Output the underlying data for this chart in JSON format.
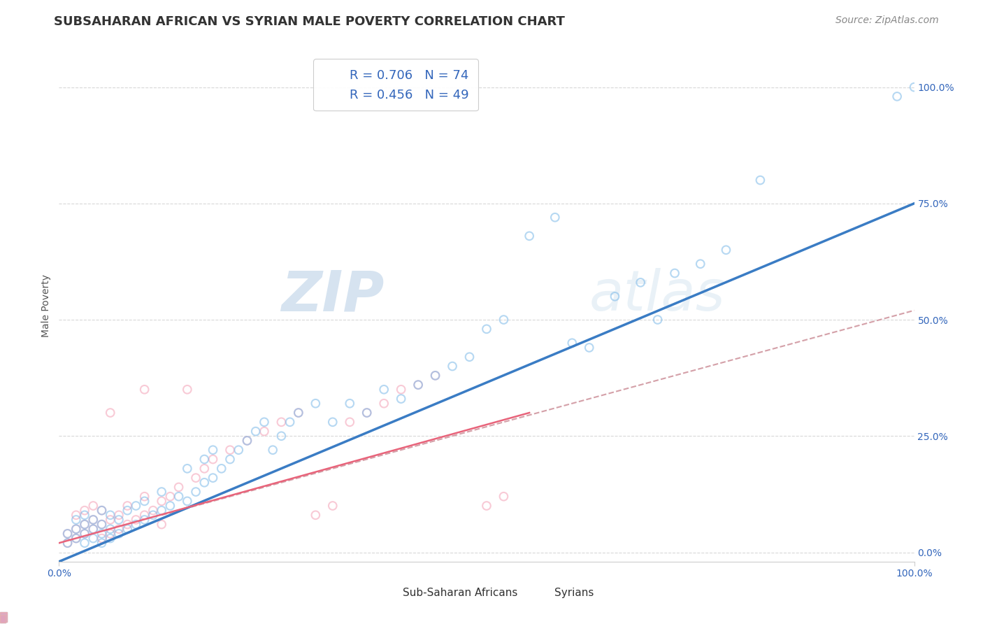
{
  "title": "SUBSAHARAN AFRICAN VS SYRIAN MALE POVERTY CORRELATION CHART",
  "source_text": "Source: ZipAtlas.com",
  "ylabel": "Male Poverty",
  "xlim": [
    0.0,
    1.0
  ],
  "ylim": [
    -0.02,
    1.08
  ],
  "xtick_labels": [
    "0.0%",
    "100.0%"
  ],
  "ytick_labels": [
    "0.0%",
    "25.0%",
    "50.0%",
    "75.0%",
    "100.0%"
  ],
  "ytick_positions": [
    0.0,
    0.25,
    0.5,
    0.75,
    1.0
  ],
  "blue_color": "#7ab8e8",
  "pink_color": "#f4a0b5",
  "blue_line_color": "#3a7cc4",
  "pink_line_color": "#e8637a",
  "dashed_line_color": "#d4a0a8",
  "watermark_zip": "ZIP",
  "watermark_atlas": "atlas",
  "legend_label1": "Sub-Saharan Africans",
  "legend_label2": "Syrians",
  "blue_line_x0": 0.0,
  "blue_line_y0": -0.02,
  "blue_line_x1": 1.0,
  "blue_line_y1": 0.75,
  "pink_line_x0": 0.0,
  "pink_line_y0": 0.02,
  "pink_line_x1": 0.55,
  "pink_line_y1": 0.3,
  "dash_line_x0": 0.12,
  "dash_line_y0": 0.08,
  "dash_line_x1": 1.0,
  "dash_line_y1": 0.52,
  "blue_scatter_x": [
    0.01,
    0.01,
    0.02,
    0.02,
    0.02,
    0.03,
    0.03,
    0.03,
    0.03,
    0.04,
    0.04,
    0.04,
    0.05,
    0.05,
    0.05,
    0.05,
    0.06,
    0.06,
    0.06,
    0.07,
    0.07,
    0.08,
    0.08,
    0.09,
    0.09,
    0.1,
    0.1,
    0.11,
    0.12,
    0.12,
    0.13,
    0.14,
    0.15,
    0.15,
    0.16,
    0.17,
    0.17,
    0.18,
    0.18,
    0.19,
    0.2,
    0.21,
    0.22,
    0.23,
    0.24,
    0.25,
    0.26,
    0.27,
    0.28,
    0.3,
    0.32,
    0.34,
    0.36,
    0.38,
    0.4,
    0.42,
    0.44,
    0.46,
    0.48,
    0.5,
    0.52,
    0.55,
    0.58,
    0.6,
    0.62,
    0.65,
    0.68,
    0.7,
    0.72,
    0.75,
    0.78,
    0.82,
    0.98,
    1.0
  ],
  "blue_scatter_y": [
    0.02,
    0.04,
    0.03,
    0.05,
    0.07,
    0.02,
    0.04,
    0.06,
    0.08,
    0.03,
    0.05,
    0.07,
    0.02,
    0.04,
    0.06,
    0.09,
    0.03,
    0.05,
    0.08,
    0.04,
    0.07,
    0.05,
    0.09,
    0.06,
    0.1,
    0.07,
    0.11,
    0.08,
    0.09,
    0.13,
    0.1,
    0.12,
    0.11,
    0.18,
    0.13,
    0.15,
    0.2,
    0.16,
    0.22,
    0.18,
    0.2,
    0.22,
    0.24,
    0.26,
    0.28,
    0.22,
    0.25,
    0.28,
    0.3,
    0.32,
    0.28,
    0.32,
    0.3,
    0.35,
    0.33,
    0.36,
    0.38,
    0.4,
    0.42,
    0.48,
    0.5,
    0.68,
    0.72,
    0.45,
    0.44,
    0.55,
    0.58,
    0.5,
    0.6,
    0.62,
    0.65,
    0.8,
    0.98,
    1.0
  ],
  "pink_scatter_x": [
    0.01,
    0.01,
    0.02,
    0.02,
    0.02,
    0.03,
    0.03,
    0.03,
    0.04,
    0.04,
    0.04,
    0.05,
    0.05,
    0.05,
    0.06,
    0.06,
    0.07,
    0.07,
    0.08,
    0.08,
    0.09,
    0.1,
    0.1,
    0.11,
    0.12,
    0.13,
    0.14,
    0.15,
    0.16,
    0.17,
    0.18,
    0.2,
    0.22,
    0.24,
    0.26,
    0.28,
    0.3,
    0.32,
    0.34,
    0.36,
    0.38,
    0.4,
    0.42,
    0.44,
    0.5,
    0.52,
    0.1,
    0.12,
    0.06
  ],
  "pink_scatter_y": [
    0.02,
    0.04,
    0.03,
    0.05,
    0.08,
    0.04,
    0.06,
    0.09,
    0.05,
    0.07,
    0.1,
    0.03,
    0.06,
    0.09,
    0.04,
    0.07,
    0.05,
    0.08,
    0.06,
    0.1,
    0.07,
    0.08,
    0.12,
    0.09,
    0.11,
    0.12,
    0.14,
    0.35,
    0.16,
    0.18,
    0.2,
    0.22,
    0.24,
    0.26,
    0.28,
    0.3,
    0.08,
    0.1,
    0.28,
    0.3,
    0.32,
    0.35,
    0.36,
    0.38,
    0.1,
    0.12,
    0.35,
    0.06,
    0.3
  ],
  "title_fontsize": 13,
  "axis_label_fontsize": 10,
  "tick_fontsize": 10,
  "source_fontsize": 10,
  "background_color": "#ffffff",
  "grid_color": "#d8d8d8",
  "watermark_color": "#dce8f5",
  "watermark_zip_color": "#c8d8e8",
  "scatter_alpha": 0.55,
  "scatter_size": 70
}
